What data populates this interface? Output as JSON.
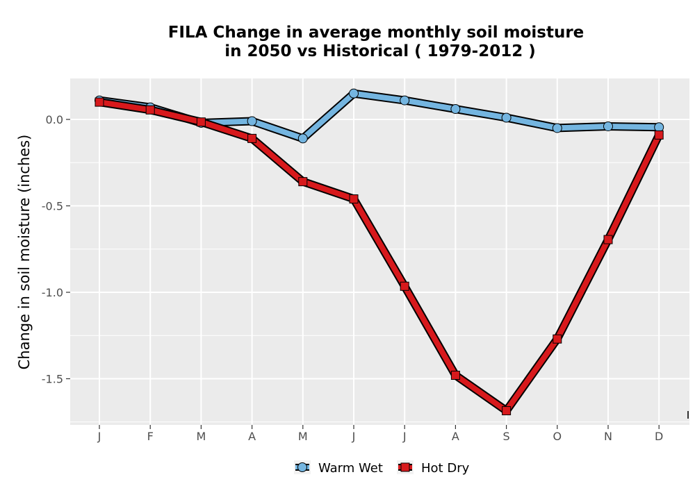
{
  "chart_data": {
    "type": "line",
    "title_line1": "FILA  Change in average monthly soil moisture",
    "title_line2": "in 2050 vs Historical ( 1979-2012 )",
    "xlabel": "",
    "ylabel": "Change in soil moisture (inches)",
    "categories": [
      "J",
      "F",
      "M",
      "A",
      "M",
      "J",
      "J",
      "A",
      "S",
      "O",
      "N",
      "D"
    ],
    "ylim": [
      -1.75,
      0.23
    ],
    "yticks": [
      0.0,
      -0.5,
      -1.0,
      -1.5
    ],
    "ytick_labels": [
      "0.0",
      "-0.5",
      "-1.0",
      "-1.5"
    ],
    "grid": true,
    "legend_position": "bottom",
    "series": [
      {
        "name": "Warm Wet",
        "color": "#74b5e0",
        "marker": "circle",
        "values": [
          0.11,
          0.07,
          -0.02,
          -0.01,
          -0.11,
          0.15,
          0.11,
          0.06,
          0.01,
          -0.05,
          -0.04,
          -0.045
        ]
      },
      {
        "name": "Hot Dry",
        "color": "#d7191c",
        "marker": "square",
        "values": [
          0.1,
          0.055,
          -0.015,
          -0.11,
          -0.36,
          -0.46,
          -0.965,
          -1.48,
          -1.685,
          -1.27,
          -0.695,
          -0.09
        ]
      }
    ]
  }
}
